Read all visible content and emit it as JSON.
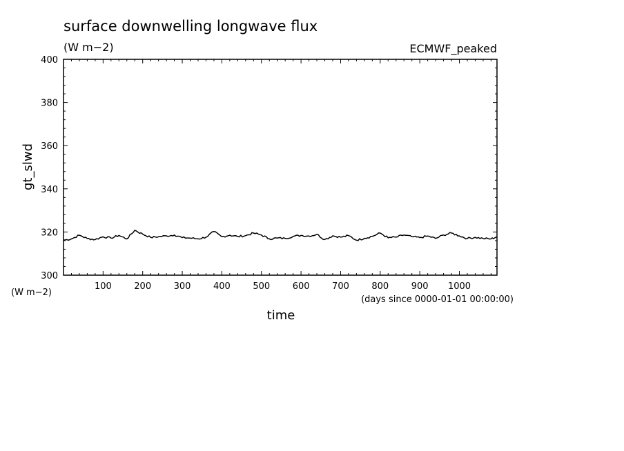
{
  "chart_data": {
    "type": "line",
    "title": "surface downwelling longwave flux",
    "subtitle": "(W m−2)",
    "annotation": "ECMWF_peaked",
    "xlabel": "time",
    "x_units": "(days since 0000-01-01 00:00:00)",
    "ylabel": "gt_slwd",
    "y_units": "(W m−2)",
    "xlim": [
      0,
      1095
    ],
    "ylim": [
      300,
      400
    ],
    "x_ticks": [
      100,
      200,
      300,
      400,
      500,
      600,
      700,
      800,
      900,
      1000
    ],
    "y_ticks": [
      300,
      320,
      340,
      360,
      380,
      400
    ],
    "grid": false,
    "line_color": "#000000",
    "series": [
      {
        "x": [
          0,
          20,
          40,
          60,
          80,
          100,
          120,
          140,
          160,
          180,
          200,
          220,
          240,
          260,
          280,
          300,
          320,
          340,
          360,
          380,
          400,
          420,
          440,
          460,
          480,
          500,
          520,
          540,
          560,
          580,
          600,
          620,
          640,
          660,
          680,
          700,
          720,
          740,
          760,
          780,
          800,
          820,
          840,
          860,
          880,
          900,
          920,
          940,
          960,
          980,
          1000,
          1020,
          1040,
          1060,
          1080,
          1095
        ],
        "y": [
          316.2,
          316.8,
          318.5,
          317.0,
          316.5,
          317.8,
          317.2,
          318.4,
          316.8,
          320.8,
          319.0,
          317.5,
          317.8,
          318.2,
          318.6,
          317.4,
          317.2,
          316.8,
          317.6,
          320.2,
          317.8,
          318.5,
          317.9,
          318.3,
          319.5,
          318.6,
          316.8,
          317.2,
          317.0,
          318.0,
          318.4,
          318.1,
          318.9,
          316.5,
          318.2,
          317.6,
          318.3,
          316.2,
          317.1,
          318.0,
          319.5,
          317.3,
          317.6,
          318.6,
          317.8,
          317.4,
          318.1,
          317.0,
          318.6,
          319.5,
          318.2,
          317.0,
          317.5,
          317.0,
          316.8,
          317.8
        ]
      }
    ]
  }
}
